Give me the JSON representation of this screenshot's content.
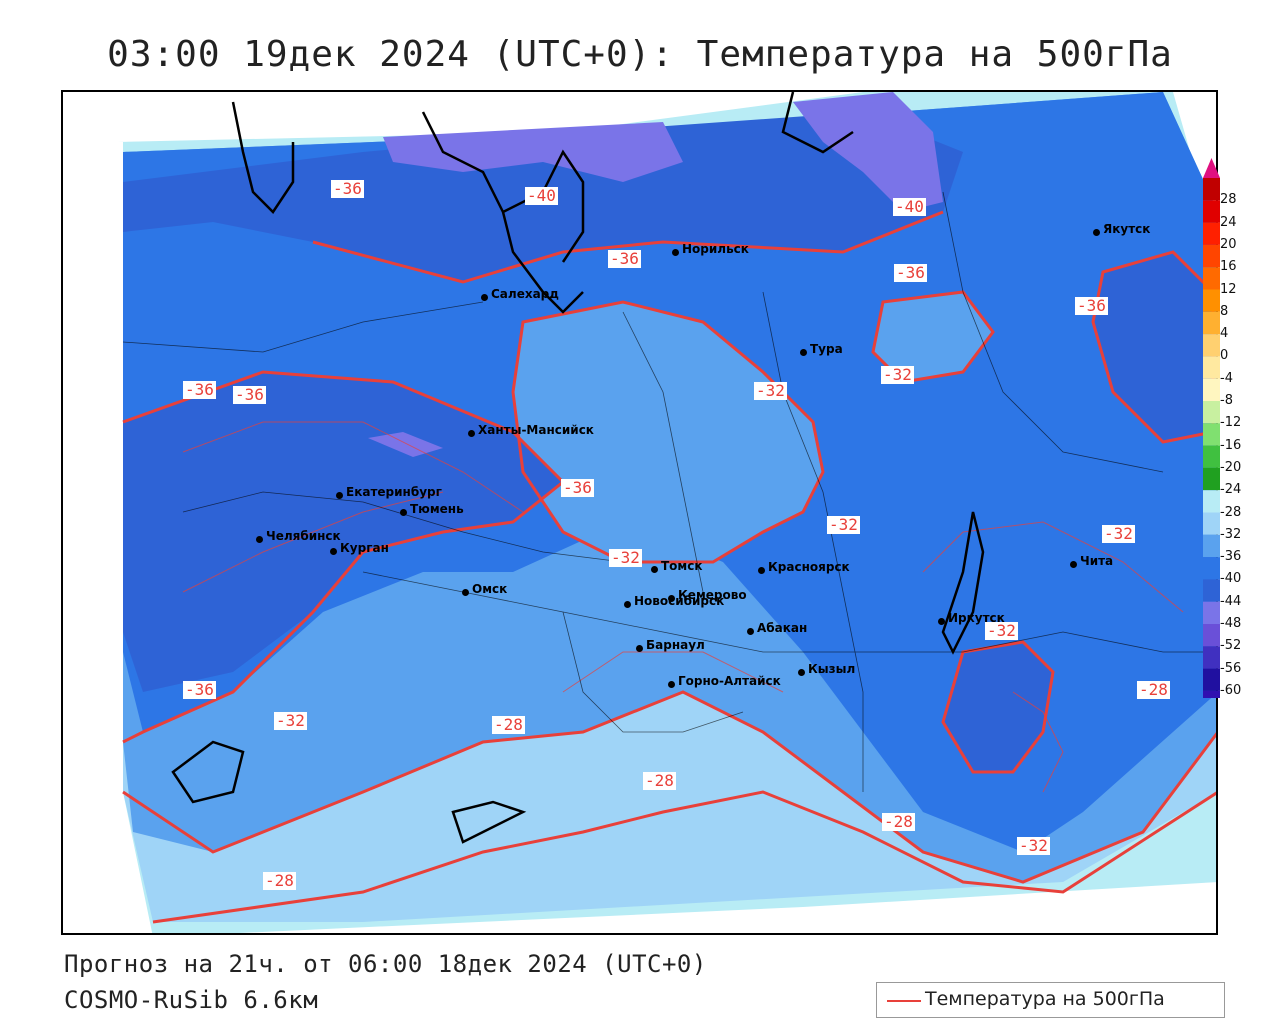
{
  "title": "03:00 19дек 2024 (UTC+0): Температура на 500гПа",
  "forecast_text": "Прогноз на 21ч. от 06:00 18дек 2024 (UTC+0)",
  "model_text": "COSMO-RuSib 6.6км",
  "legend_label": "Температура на 500гПа",
  "colors": {
    "line": "#e8403a",
    "band_m40_m36": "#2e63d6",
    "band_m36_m32": "#2d76e6",
    "band_m32_m28": "#5aa2ee",
    "band_m28_m24": "#9fd4f7",
    "band_m24_m20": "#b8ecf5",
    "band_m44_m40": "#7a74e8"
  },
  "colorbar": {
    "ticks": [
      "28",
      "24",
      "20",
      "16",
      "12",
      "8",
      "4",
      "0",
      "-4",
      "-8",
      "-12",
      "-16",
      "-20",
      "-24",
      "-28",
      "-32",
      "-36",
      "-40",
      "-44",
      "-48",
      "-52",
      "-56",
      "-60"
    ],
    "colors": [
      "#c00000",
      "#e00000",
      "#ff2000",
      "#ff4500",
      "#ff6a00",
      "#ff9000",
      "#ffb030",
      "#ffd070",
      "#ffe9a0",
      "#fff6c0",
      "#c8f0a0",
      "#80e070",
      "#40c040",
      "#20a020",
      "#b8ecf5",
      "#9fd4f7",
      "#5aa2ee",
      "#2d76e6",
      "#2e63d6",
      "#7a74e8",
      "#6a50d8",
      "#4030c0",
      "#2010a0",
      "#3010b0"
    ]
  },
  "contour_labels": [
    "-36",
    "-40",
    "-36",
    "-36",
    "-36",
    "-32",
    "-32",
    "-36",
    "-36",
    "-32",
    "-32",
    "-32",
    "-32",
    "-36",
    "-36",
    "-32",
    "-28",
    "-28",
    "-28",
    "-32",
    "-28",
    "-28",
    "-40"
  ],
  "cities": [
    "Якутск",
    "Норильск",
    "Салехард",
    "Тура",
    "Ханты-Мансийск",
    "Екатеринбург",
    "Тюмень",
    "Челябинск",
    "Курган",
    "Омск",
    "Новосибирск",
    "Томск",
    "Кемерово",
    "Красноярск",
    "Абакан",
    "Барнаул",
    "Горно-Алтайск",
    "Кызыл",
    "Иркутск",
    "Чита"
  ]
}
